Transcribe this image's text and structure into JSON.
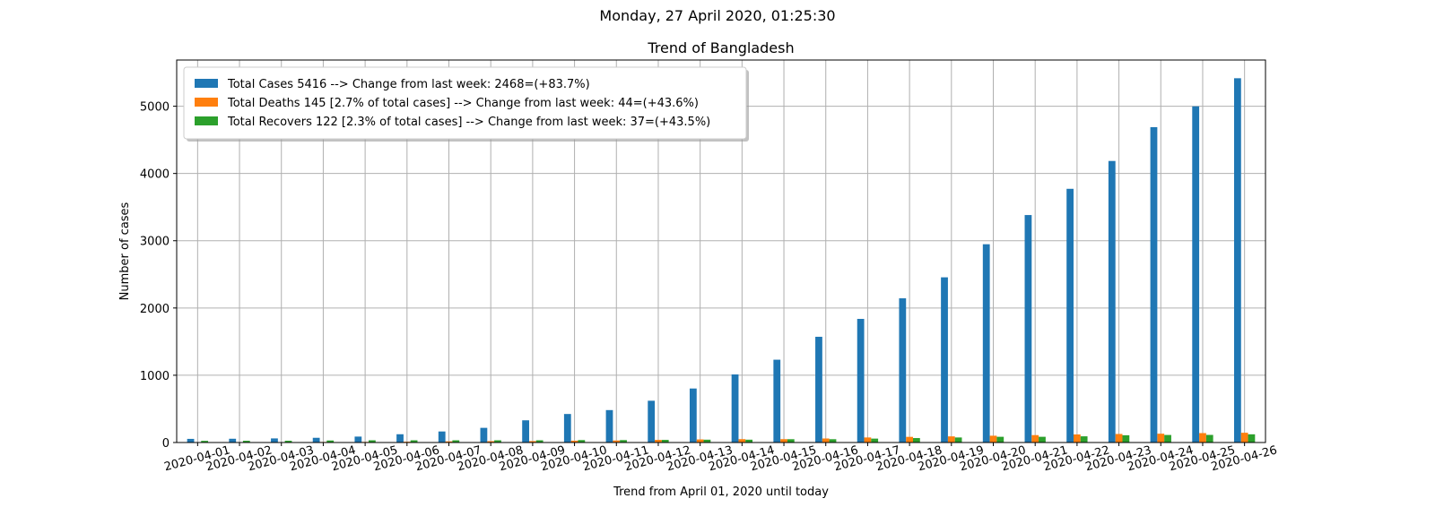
{
  "suptitle": "Monday, 27 April 2020, 01:25:30",
  "chart_data": {
    "type": "bar",
    "title": "Trend of Bangladesh",
    "xlabel": "Trend from April 01, 2020 until today",
    "ylabel": "Number of cases",
    "ylim": [
      0,
      5687
    ],
    "yticks": [
      0,
      1000,
      2000,
      3000,
      4000,
      5000
    ],
    "grid": true,
    "legend_position": "upper-left",
    "categories": [
      "2020-04-01",
      "2020-04-02",
      "2020-04-03",
      "2020-04-04",
      "2020-04-05",
      "2020-04-06",
      "2020-04-07",
      "2020-04-08",
      "2020-04-09",
      "2020-04-10",
      "2020-04-11",
      "2020-04-12",
      "2020-04-13",
      "2020-04-14",
      "2020-04-15",
      "2020-04-16",
      "2020-04-17",
      "2020-04-18",
      "2020-04-19",
      "2020-04-20",
      "2020-04-21",
      "2020-04-22",
      "2020-04-23",
      "2020-04-24",
      "2020-04-25",
      "2020-04-26"
    ],
    "series": [
      {
        "name": "Total Cases 5416 --> Change from last week: 2468=(+83.7%)",
        "color": "#1f77b4",
        "values": [
          54,
          56,
          61,
          70,
          88,
          123,
          164,
          218,
          330,
          424,
          482,
          621,
          803,
          1012,
          1231,
          1572,
          1838,
          2144,
          2456,
          2948,
          3382,
          3772,
          4186,
          4689,
          4998,
          5416
        ]
      },
      {
        "name": "Total Deaths 145 [2.7% of total cases] --> Change from last week: 44=(+43.6%)",
        "color": "#ff7f0e",
        "values": [
          6,
          6,
          6,
          8,
          9,
          12,
          17,
          20,
          21,
          27,
          30,
          39,
          46,
          50,
          50,
          60,
          75,
          84,
          91,
          101,
          110,
          120,
          127,
          131,
          140,
          145
        ]
      },
      {
        "name": "Total Recovers 122 [2.3% of total cases] --> Change from last week: 37=(+43.5%)",
        "color": "#2ca02c",
        "values": [
          25,
          26,
          26,
          30,
          33,
          33,
          33,
          33,
          33,
          36,
          36,
          39,
          42,
          42,
          49,
          49,
          58,
          66,
          75,
          85,
          85,
          92,
          108,
          112,
          113,
          122
        ]
      }
    ]
  }
}
